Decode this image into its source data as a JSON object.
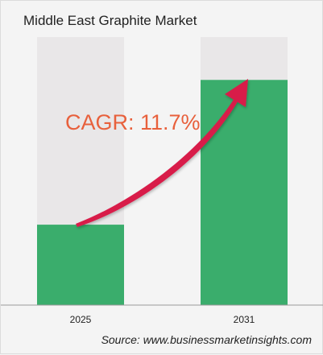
{
  "chart_data": {
    "type": "bar",
    "title": "Middle East Graphite Market",
    "categories": [
      "2025",
      "2031"
    ],
    "values": [
      0.3,
      0.84
    ],
    "ylim": [
      0,
      1
    ],
    "xlabel": "",
    "ylabel": "",
    "grid": false,
    "legend": "none",
    "annotation": "CAGR: 11.7%",
    "source": "Source: www.businessmarketinsights.com"
  },
  "colors": {
    "bar_fill": "#3aad6c",
    "bar_track": "#e9e7e8",
    "arrow": "#d81b4a",
    "cagr_text": "#e8603c",
    "background": "#f4f4f4",
    "axis": "#9a9a9a"
  }
}
